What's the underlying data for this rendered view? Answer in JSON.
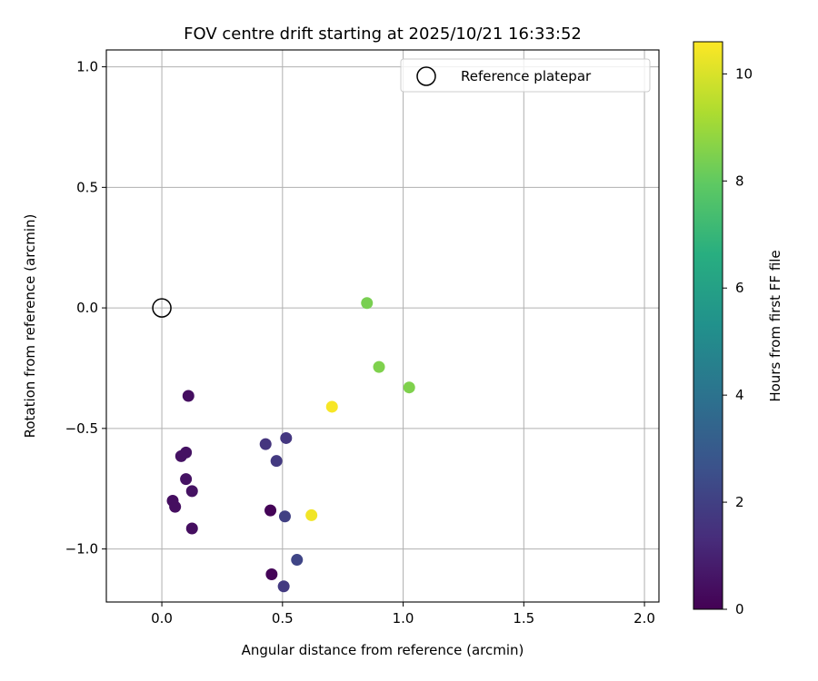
{
  "chart_data": {
    "type": "scatter",
    "title": "FOV centre drift starting at 2025/10/21 16:33:52",
    "xlabel": "Angular distance from reference (arcmin)",
    "ylabel": "Rotation from reference (arcmin)",
    "xlim": [
      -0.23,
      2.06
    ],
    "ylim": [
      -1.22,
      1.07
    ],
    "xticks": [
      0.0,
      0.5,
      1.0,
      1.5,
      2.0
    ],
    "xtick_labels": [
      "0.0",
      "0.5",
      "1.0",
      "1.5",
      "2.0"
    ],
    "yticks": [
      -1.0,
      -0.5,
      0.0,
      0.5,
      1.0
    ],
    "ytick_labels": [
      "−1.0",
      "−0.5",
      "0.0",
      "0.5",
      "1.0"
    ],
    "grid": true,
    "legend": {
      "position": "top-right",
      "label": "Reference platepar"
    },
    "reference_point": {
      "x": 0.0,
      "y": 0.0,
      "label": "Reference platepar"
    },
    "colorbar": {
      "label": "Hours from first FF file",
      "range": [
        0,
        10.6
      ],
      "ticks": [
        0,
        2,
        4,
        6,
        8,
        10
      ],
      "tick_labels": [
        "0",
        "2",
        "4",
        "6",
        "8",
        "10"
      ],
      "colormap": "viridis"
    },
    "points": [
      {
        "x": 0.11,
        "y": -0.365,
        "hours": 0.4
      },
      {
        "x": 0.08,
        "y": -0.615,
        "hours": 0.5
      },
      {
        "x": 0.1,
        "y": -0.6,
        "hours": 0.5
      },
      {
        "x": 0.1,
        "y": -0.71,
        "hours": 0.5
      },
      {
        "x": 0.125,
        "y": -0.76,
        "hours": 0.5
      },
      {
        "x": 0.045,
        "y": -0.8,
        "hours": 0.4
      },
      {
        "x": 0.055,
        "y": -0.825,
        "hours": 0.4
      },
      {
        "x": 0.125,
        "y": -0.915,
        "hours": 0.4
      },
      {
        "x": 0.45,
        "y": -0.84,
        "hours": 0.1
      },
      {
        "x": 0.455,
        "y": -1.105,
        "hours": 0.1
      },
      {
        "x": 0.43,
        "y": -0.565,
        "hours": 1.6
      },
      {
        "x": 0.515,
        "y": -0.54,
        "hours": 1.7
      },
      {
        "x": 0.475,
        "y": -0.635,
        "hours": 1.8
      },
      {
        "x": 0.51,
        "y": -0.865,
        "hours": 2.0
      },
      {
        "x": 0.56,
        "y": -1.045,
        "hours": 2.2
      },
      {
        "x": 0.505,
        "y": -1.155,
        "hours": 1.8
      },
      {
        "x": 0.85,
        "y": 0.02,
        "hours": 8.4
      },
      {
        "x": 0.9,
        "y": -0.245,
        "hours": 8.5
      },
      {
        "x": 1.025,
        "y": -0.33,
        "hours": 8.5
      },
      {
        "x": 0.705,
        "y": -0.41,
        "hours": 10.5
      },
      {
        "x": 0.62,
        "y": -0.86,
        "hours": 10.4
      }
    ]
  }
}
